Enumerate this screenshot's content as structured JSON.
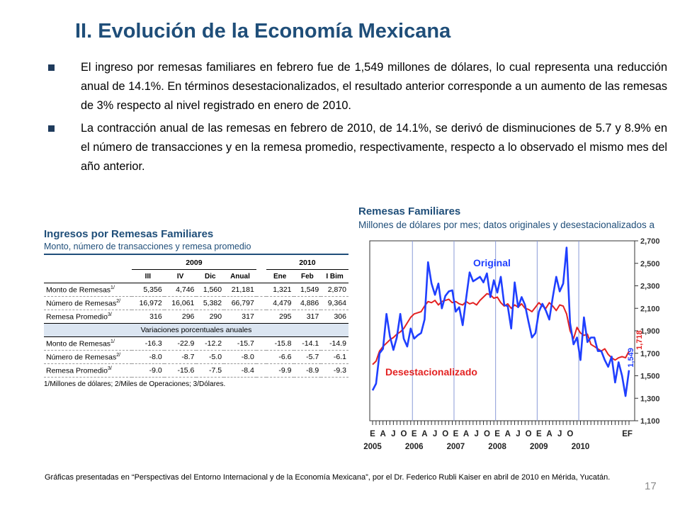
{
  "slide": {
    "title": "II. Evolución de la Economía Mexicana",
    "bullets": [
      "El ingreso por remesas familiares en febrero fue de 1,549 millones de dólares, lo cual representa una reducción anual de 14.1%. En términos desestacionalizados, el resultado anterior corresponde a un aumento de las remesas de 3% respecto al nivel registrado en enero de 2010.",
      "La contracción anual de las remesas en febrero de 2010, de 14.1%, se derivó de disminuciones de 5.7 y 8.9% en el número de transacciones y en la remesa promedio, respectivamente, respecto a lo observado el mismo mes del año anterior."
    ],
    "source": "Gráficas presentadas en “Perspectivas del Entorno Internacional y de la Economía Mexicana”, por el Dr. Federico Rubli Kaiser en abril de 2010 en Mérida, Yucatán.",
    "page_number": "17"
  },
  "table": {
    "title": "Ingresos por Remesas Familiares",
    "subtitle": "Monto, número de transacciones y remesa promedio",
    "year1": "2009",
    "year2": "2010",
    "col_headers": [
      "III",
      "IV",
      "Dic",
      "Anual",
      "Ene",
      "Feb",
      "I Bim"
    ],
    "rows": [
      {
        "label": "Monto de Remesas",
        "sup": "1/",
        "values": [
          "5,356",
          "4,746",
          "1,560",
          "21,181",
          "1,321",
          "1,549",
          "2,870"
        ]
      },
      {
        "label": "Número de Remesas",
        "sup": "2/",
        "values": [
          "16,972",
          "16,061",
          "5,382",
          "66,797",
          "4,479",
          "4,886",
          "9,364"
        ]
      },
      {
        "label": "Remesa Promedio",
        "sup": "3/",
        "values": [
          "316",
          "296",
          "290",
          "317",
          "295",
          "317",
          "306"
        ]
      }
    ],
    "section_title": "Variaciones porcentuales anuales",
    "var_rows": [
      {
        "label": "Monto de Remesas",
        "sup": "1/",
        "values": [
          "-16.3",
          "-22.9",
          "-12.2",
          "-15.7",
          "-15.8",
          "-14.1",
          "-14.9"
        ]
      },
      {
        "label": "Número de Remesas",
        "sup": "2/",
        "values": [
          "-8.0",
          "-8.7",
          "-5.0",
          "-8.0",
          "-6.6",
          "-5.7",
          "-6.1"
        ]
      },
      {
        "label": "Remesa Promedio",
        "sup": "3/",
        "values": [
          "-9.0",
          "-15.6",
          "-7.5",
          "-8.4",
          "-9.9",
          "-8.9",
          "-9.3"
        ]
      }
    ],
    "footnote": "1/Millones de dólares; 2/Miles de Operaciones; 3/Dólares."
  },
  "chart_data": {
    "type": "line",
    "title": "Remesas Familiares",
    "subtitle": "Millones de dólares por mes; datos originales y desestacionalizados a",
    "ylim": [
      1100,
      2700
    ],
    "yticks": [
      "1,100",
      "1,300",
      "1,500",
      "1,700",
      "1,900",
      "2,100",
      "2,300",
      "2,500",
      "2,700"
    ],
    "xticks": [
      "E",
      "A",
      "J",
      "O",
      "E",
      "A",
      "J",
      "O",
      "E",
      "A",
      "J",
      "O",
      "E",
      "A",
      "J",
      "O",
      "E",
      "A",
      "J",
      "O",
      "EF"
    ],
    "year_labels": [
      "2005",
      "2006",
      "2007",
      "2008",
      "2009",
      "2010"
    ],
    "annotations": {
      "v1": "1,549",
      "v2": "1,718"
    },
    "grid": "vertical year separators",
    "colors": {
      "original": "#1f3fff",
      "desestacionalizado": "#e32222"
    },
    "series": [
      {
        "name": "Original",
        "values": [
          1370,
          1430,
          1700,
          1740,
          2050,
          1850,
          1730,
          1840,
          2050,
          1830,
          1760,
          1920,
          1830,
          1860,
          1880,
          2000,
          2510,
          2320,
          2220,
          2320,
          2100,
          2210,
          2250,
          2260,
          2070,
          2110,
          1950,
          2190,
          2420,
          2340,
          2360,
          2380,
          2330,
          2410,
          2200,
          2350,
          2240,
          2380,
          2130,
          2120,
          1920,
          2330,
          2110,
          2200,
          2130,
          1980,
          1840,
          1880,
          2070,
          2140,
          2080,
          2000,
          2200,
          2380,
          2250,
          2320,
          2640,
          1970,
          1780,
          1840,
          1640,
          2020,
          1800,
          1840,
          1840,
          1720,
          1720,
          1640,
          1580,
          1670,
          1440,
          1620,
          1500,
          1320,
          1549
        ]
      },
      {
        "name": "Desestacionalizado",
        "values": [
          1600,
          1630,
          1720,
          1760,
          1790,
          1820,
          1840,
          1870,
          1890,
          1920,
          1970,
          2020,
          2050,
          2060,
          2070,
          2120,
          2160,
          2150,
          2170,
          2130,
          2160,
          2170,
          2180,
          2150,
          2160,
          2140,
          2130,
          2160,
          2140,
          2150,
          2130,
          2170,
          2200,
          2230,
          2220,
          2190,
          2200,
          2150,
          2120,
          2140,
          2100,
          2130,
          2110,
          2140,
          2100,
          2090,
          2070,
          2110,
          2150,
          2120,
          2100,
          2150,
          2120,
          2080,
          2130,
          2120,
          2050,
          1900,
          1830,
          1930,
          1880,
          1860,
          1870,
          1780,
          1760,
          1740,
          1720,
          1740,
          1690,
          1660,
          1640,
          1660,
          1670,
          1660,
          1718
        ]
      }
    ],
    "labels": {
      "original": "Original",
      "desestacionalizado": "Desestacionalizado"
    }
  }
}
